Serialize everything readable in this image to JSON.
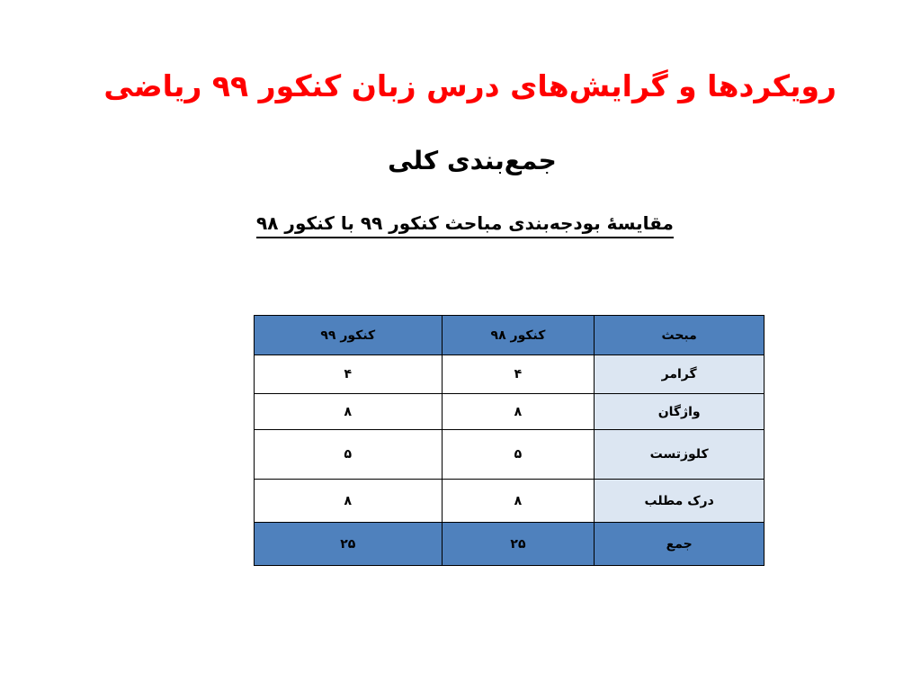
{
  "header": {
    "title": "رویکردها و گرایش‌های درس زبان کنکور ۹۹ ریاضی",
    "subtitle": "جمع‌بندی کلی",
    "caption": "مقایسۀ بودجه‌بندی مباحث کنکور ۹۹ با کنکور ۹۸"
  },
  "table": {
    "columns": [
      "مبحث",
      "کنکور ۹۸",
      "کنکور ۹۹"
    ],
    "rows": [
      [
        "گرامر",
        "۴",
        "۴"
      ],
      [
        "واژگان",
        "۸",
        "۸"
      ],
      [
        "کلوزتست",
        "۵",
        "۵"
      ],
      [
        "درک مطلب",
        "۸",
        "۸"
      ]
    ],
    "total": [
      "جمع",
      "۲۵",
      "۲۵"
    ]
  }
}
